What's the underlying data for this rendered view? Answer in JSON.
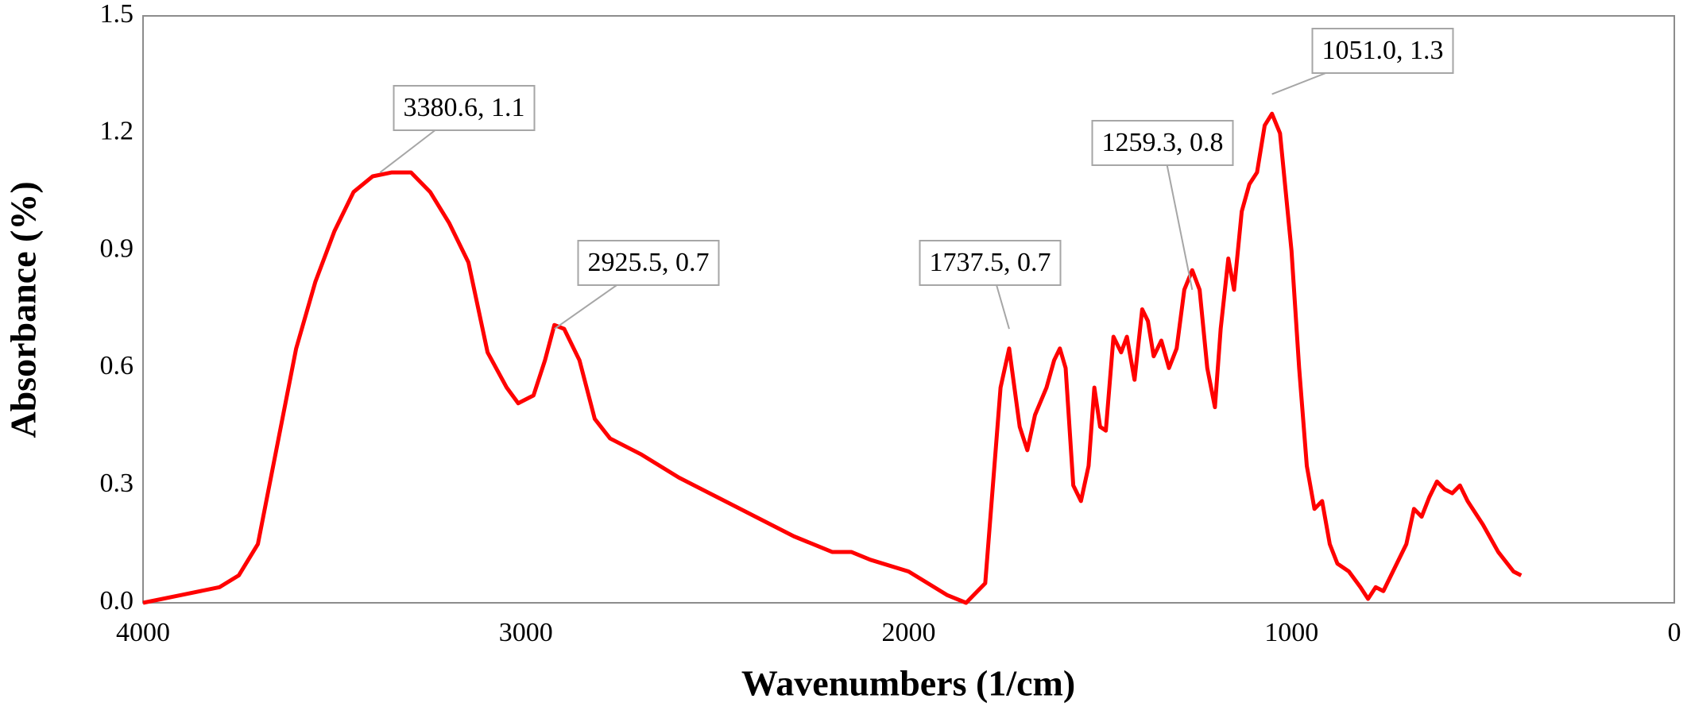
{
  "chart_data": {
    "type": "line",
    "x_label": "Wavenumbers (1/cm)",
    "y_label": "Absorbance (%)",
    "color": "#ff0000",
    "xlim": [
      4000,
      0
    ],
    "xticks": [
      4000,
      3000,
      2000,
      1000,
      0
    ],
    "ylim": [
      0,
      1.5
    ],
    "yticks": [
      {
        "value": 0,
        "label": "0.0"
      },
      0.3,
      0.6,
      0.9,
      1.2,
      1.5
    ],
    "grid": false,
    "x": [
      4000,
      3900,
      3800,
      3750,
      3700,
      3650,
      3600,
      3550,
      3500,
      3450,
      3400,
      3350,
      3300,
      3250,
      3200,
      3150,
      3100,
      3050,
      3020,
      2980,
      2950,
      2925.5,
      2900,
      2860,
      2820,
      2780,
      2700,
      2600,
      2500,
      2400,
      2300,
      2200,
      2150,
      2100,
      2000,
      1950,
      1900,
      1850,
      1800,
      1780,
      1760,
      1737.5,
      1710,
      1690,
      1670,
      1640,
      1620,
      1605,
      1590,
      1570,
      1550,
      1530,
      1515,
      1500,
      1485,
      1465,
      1445,
      1430,
      1410,
      1390,
      1375,
      1360,
      1340,
      1320,
      1300,
      1280,
      1259.3,
      1240,
      1220,
      1200,
      1185,
      1165,
      1150,
      1130,
      1110,
      1090,
      1070,
      1051,
      1030,
      1000,
      980,
      960,
      940,
      920,
      900,
      880,
      850,
      820,
      800,
      780,
      760,
      740,
      700,
      680,
      660,
      640,
      620,
      600,
      580,
      560,
      540,
      500,
      460,
      420,
      400
    ],
    "values": [
      0.0,
      0.02,
      0.04,
      0.07,
      0.15,
      0.4,
      0.65,
      0.82,
      0.95,
      1.05,
      1.09,
      1.1,
      1.1,
      1.05,
      0.97,
      0.87,
      0.64,
      0.55,
      0.51,
      0.53,
      0.62,
      0.71,
      0.7,
      0.62,
      0.47,
      0.42,
      0.38,
      0.32,
      0.27,
      0.22,
      0.17,
      0.13,
      0.13,
      0.11,
      0.08,
      0.05,
      0.02,
      0.0,
      0.05,
      0.3,
      0.55,
      0.65,
      0.45,
      0.39,
      0.48,
      0.55,
      0.62,
      0.65,
      0.6,
      0.3,
      0.26,
      0.35,
      0.55,
      0.45,
      0.44,
      0.68,
      0.64,
      0.68,
      0.57,
      0.75,
      0.72,
      0.63,
      0.67,
      0.6,
      0.65,
      0.8,
      0.85,
      0.8,
      0.6,
      0.5,
      0.7,
      0.88,
      0.8,
      1.0,
      1.07,
      1.1,
      1.22,
      1.25,
      1.2,
      0.9,
      0.6,
      0.35,
      0.24,
      0.26,
      0.15,
      0.1,
      0.08,
      0.04,
      0.01,
      0.04,
      0.03,
      0.07,
      0.15,
      0.24,
      0.22,
      0.27,
      0.31,
      0.29,
      0.28,
      0.3,
      0.26,
      0.2,
      0.13,
      0.08,
      0.07
    ],
    "annotations": [
      {
        "text": "3380.6, 1.1",
        "x": 3380.6,
        "y": 1.1
      },
      {
        "text": "2925.5, 0.7",
        "x": 2925.5,
        "y": 0.7
      },
      {
        "text": "1737.5, 0.7",
        "x": 1737.5,
        "y": 0.7
      },
      {
        "text": "1259.3, 0.8",
        "x": 1259.3,
        "y": 0.8
      },
      {
        "text": "1051.0, 1.3",
        "x": 1051.0,
        "y": 1.3
      }
    ]
  }
}
